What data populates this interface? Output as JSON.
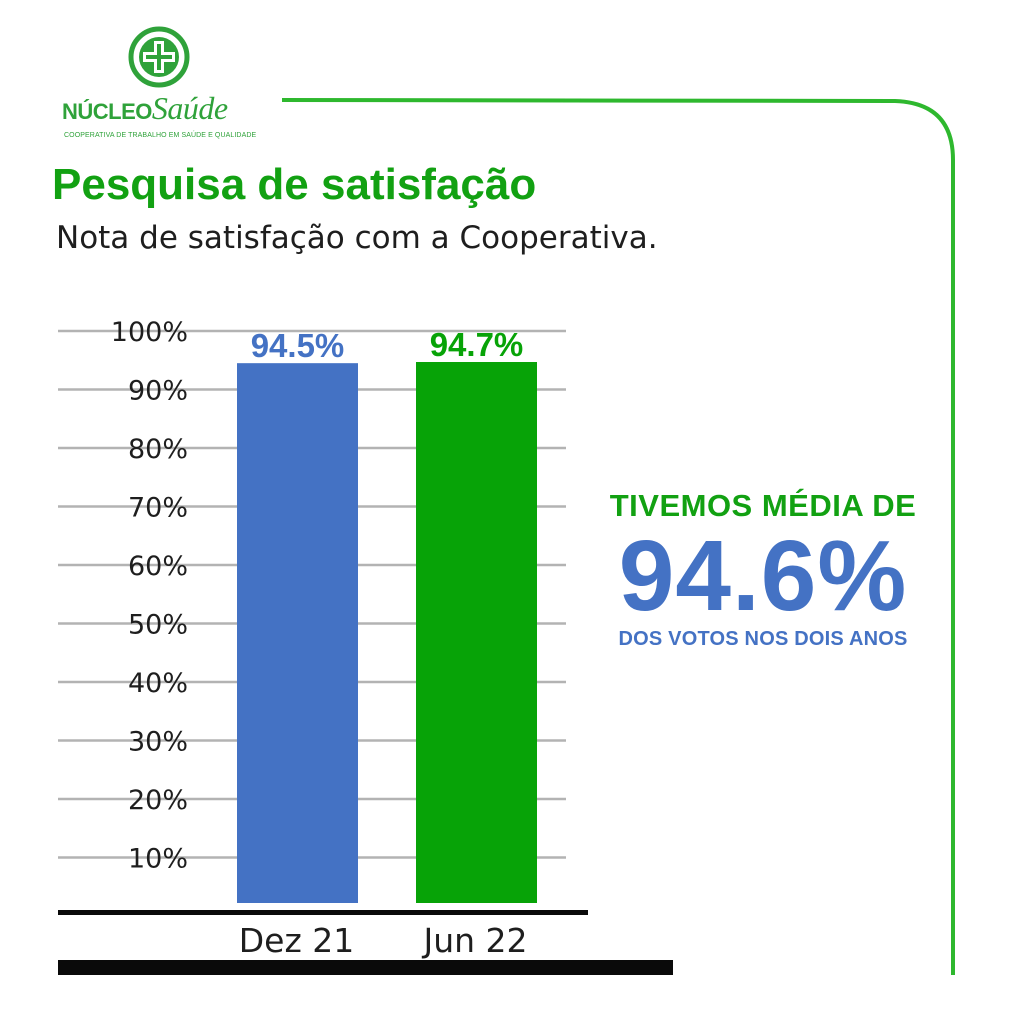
{
  "logo": {
    "name_part1": "NÚCLEO",
    "name_part2": "Saúde",
    "tagline": "COOPERATIVA DE TRABALHO EM SAÚDE E QUALIDADE",
    "icon": "medical-cross-icon"
  },
  "header": {
    "title": "Pesquisa de satisfação",
    "subtitle": "Nota de satisfação com a Cooperativa."
  },
  "summary": {
    "line1": "TIVEMOS MÉDIA DE",
    "value": "94.6%",
    "line2": "DOS VOTOS NOS DOIS ANOS"
  },
  "colors": {
    "accent_green": "#12a112",
    "bar_blue": "#4472c4",
    "bar_green": "#07a307",
    "frame_green": "#2eb82e"
  },
  "chart_data": {
    "type": "bar",
    "categories": [
      "Dez 21",
      "Jun 22"
    ],
    "values": [
      94.5,
      94.7
    ],
    "data_labels": [
      "94.5%",
      "94.7%"
    ],
    "bar_colors": [
      "#4472c4",
      "#07a307"
    ],
    "label_colors": [
      "#4472c4",
      "#07a307"
    ],
    "yticks": [
      "10%",
      "20%",
      "30%",
      "40%",
      "50%",
      "60%",
      "70%",
      "80%",
      "90%",
      "100%"
    ],
    "ytick_values": [
      10,
      20,
      30,
      40,
      50,
      60,
      70,
      80,
      90,
      100
    ],
    "ylim": [
      0,
      100
    ],
    "grid": true,
    "title": "",
    "xlabel": "",
    "ylabel": ""
  }
}
